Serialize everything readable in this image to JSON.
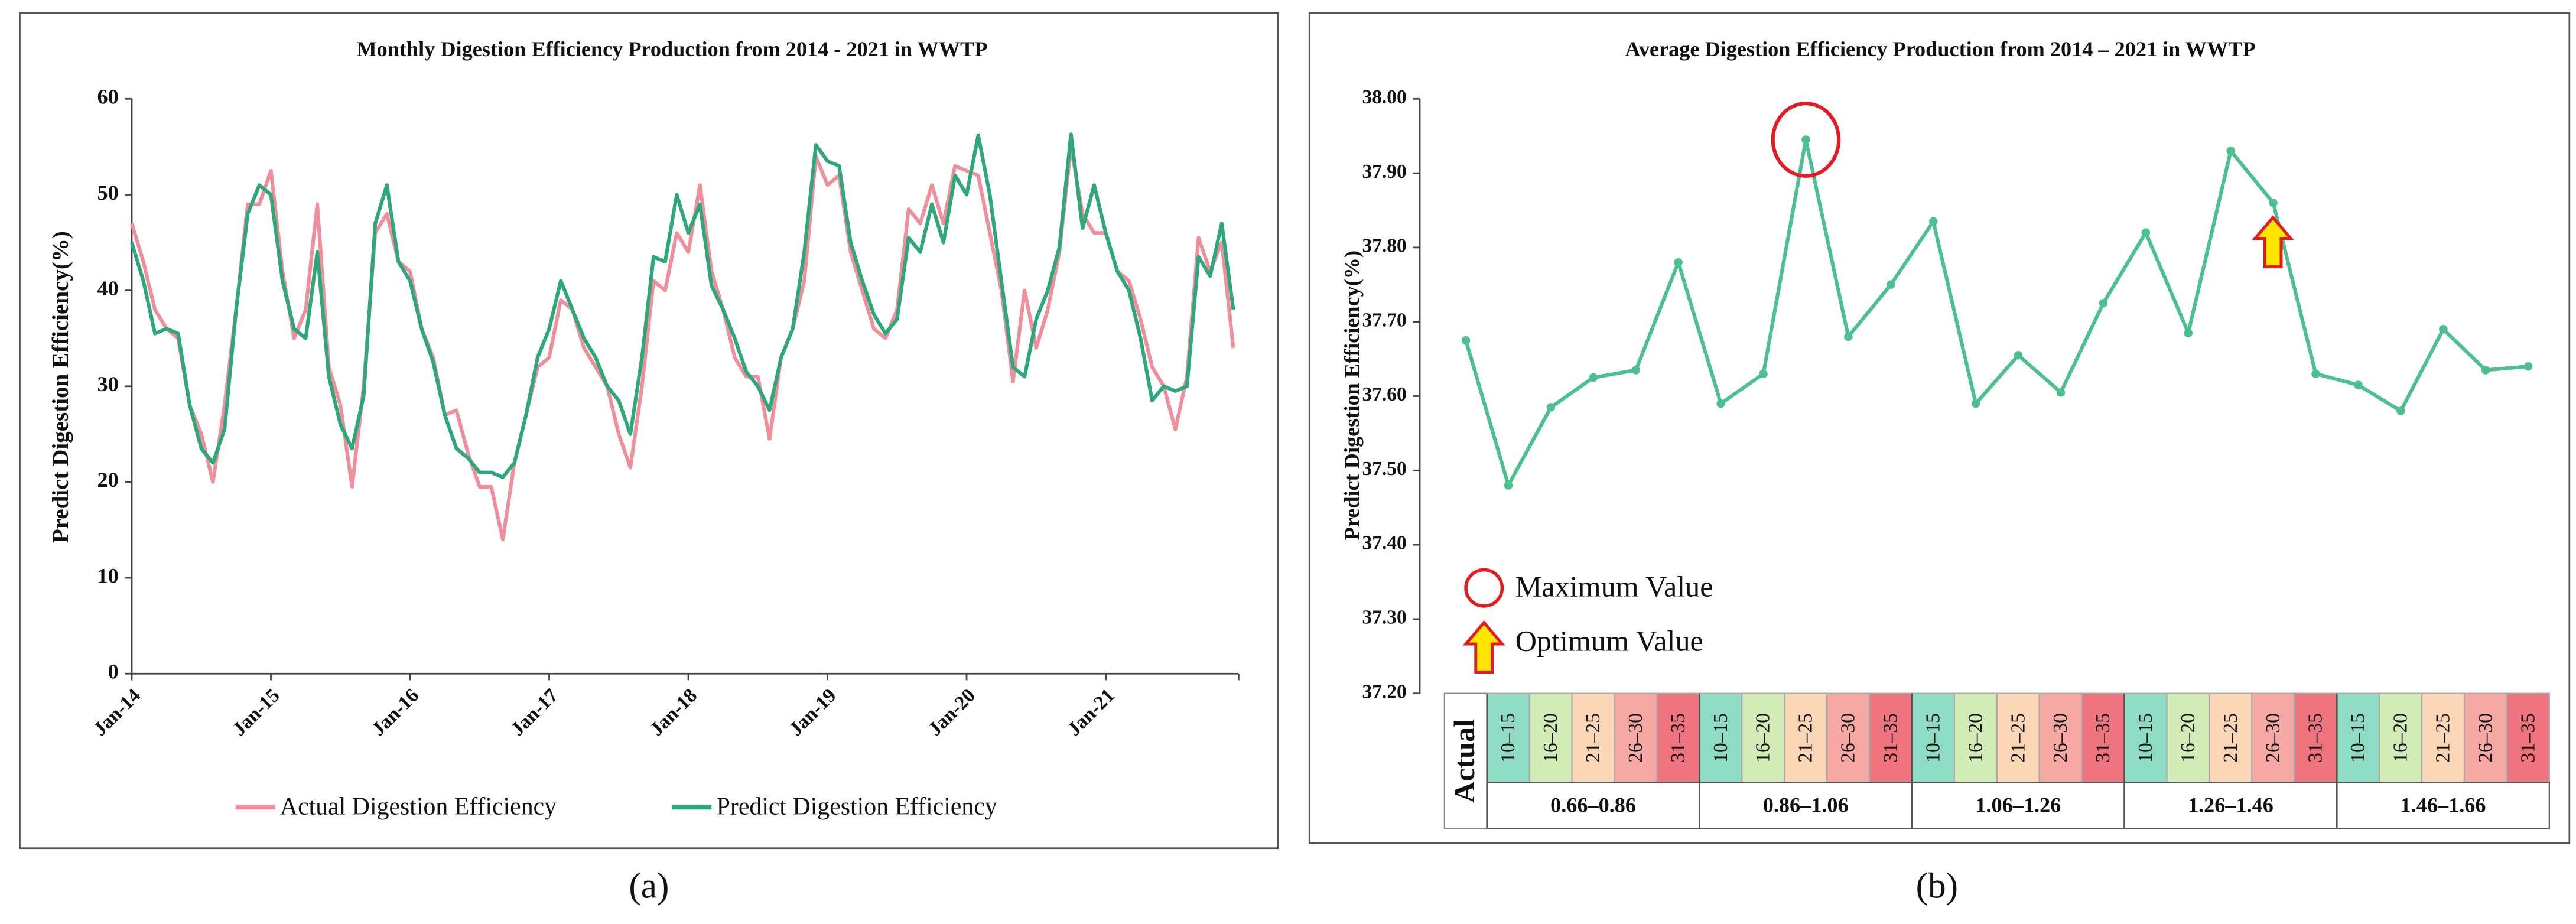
{
  "chart_data": [
    {
      "type": "line",
      "panel_label": "(a)",
      "title": "Monthly Digestion Efficiency Production from 2014 - 2021 in WWTP",
      "y_label": "Predict Digestion  Efficiency(%)",
      "categories": [
        "Jan-14",
        null,
        null,
        null,
        null,
        null,
        null,
        null,
        null,
        null,
        null,
        null,
        "Jan-15",
        null,
        null,
        null,
        null,
        null,
        null,
        null,
        null,
        null,
        null,
        null,
        "Jan-16",
        null,
        null,
        null,
        null,
        null,
        null,
        null,
        null,
        null,
        null,
        null,
        "Jan-17",
        null,
        null,
        null,
        null,
        null,
        null,
        null,
        null,
        null,
        null,
        null,
        "Jan-18",
        null,
        null,
        null,
        null,
        null,
        null,
        null,
        null,
        null,
        null,
        null,
        "Jan-19",
        null,
        null,
        null,
        null,
        null,
        null,
        null,
        null,
        null,
        null,
        null,
        "Jan-20",
        null,
        null,
        null,
        null,
        null,
        null,
        null,
        null,
        null,
        null,
        null,
        "Jan-21",
        null,
        null,
        null,
        null,
        null,
        null,
        null,
        null,
        null,
        null,
        null
      ],
      "ylim": [
        0,
        60
      ],
      "yticks": [
        0,
        10,
        20,
        30,
        40,
        50,
        60
      ],
      "series": [
        {
          "name": "Actual Digestion Efficiency",
          "color": "#f08f9c",
          "values": [
            47,
            43,
            38,
            36,
            35,
            28,
            25,
            20,
            28,
            38,
            49,
            49,
            52.5,
            42,
            35,
            38,
            49,
            32,
            28,
            19.5,
            30,
            46,
            48,
            43,
            42,
            36,
            33,
            27,
            27.5,
            23,
            19.5,
            19.5,
            14,
            22,
            27,
            32,
            33,
            39,
            38,
            34,
            32,
            30,
            25,
            21.5,
            30,
            41,
            40,
            46,
            44,
            51,
            42,
            38,
            33,
            31,
            31,
            24.5,
            33,
            36,
            41,
            54,
            51,
            52,
            44,
            40,
            36,
            35,
            38,
            48.5,
            47,
            51,
            47,
            53,
            52.5,
            52,
            46,
            40,
            30.5,
            40,
            34,
            38,
            44,
            55,
            48,
            46,
            46,
            42,
            41,
            37,
            32,
            30,
            25.5,
            31,
            45.5,
            42,
            45,
            34
          ]
        },
        {
          "name": "Predict Digestion Efficiency",
          "color": "#2ea87a",
          "values": [
            45,
            41,
            35.5,
            36,
            35.5,
            28,
            23.5,
            22,
            25.5,
            38,
            48,
            51,
            50,
            41,
            36,
            35,
            44,
            31,
            26,
            23.5,
            29,
            47,
            51,
            43,
            41,
            36,
            32.5,
            27,
            23.5,
            22.5,
            21,
            21,
            20.5,
            22,
            27,
            33,
            36,
            41,
            38,
            35,
            33,
            30,
            28.5,
            25,
            33,
            43.5,
            43,
            50,
            46,
            49,
            40.5,
            38,
            35,
            31.5,
            30,
            27.5,
            33,
            36,
            44,
            55.2,
            53.5,
            53,
            45,
            41,
            37.5,
            35.5,
            37,
            45.5,
            44,
            49,
            45,
            52,
            50,
            56.2,
            50,
            41,
            32,
            31,
            37,
            40,
            44.5,
            56.3,
            46.5,
            51,
            46,
            42,
            40,
            35,
            28.5,
            30,
            29.5,
            30,
            43.5,
            41.5,
            47,
            38
          ]
        }
      ]
    },
    {
      "type": "line",
      "panel_label": "(b)",
      "title": "Average Digestion  Efficiency Production from 2014 – 2021 in WWTP",
      "y_label": "Predict Digestion  Efficiency(%)",
      "categories": [
        "Actual",
        "10–15",
        "16–20",
        "21–25",
        "26–30",
        "31–35",
        "10–15",
        "16–20",
        "21–25",
        "26–30",
        "31–35",
        "10–15",
        "16–20",
        "21–25",
        "26–30",
        "31–35",
        "10–15",
        "16–20",
        "21–25",
        "26–30",
        "31–35",
        "10–15",
        "16–20",
        "21–25",
        "26–30",
        "31–35"
      ],
      "category_colors": [
        "#ffffff",
        "#8fdcc4",
        "#d3ebb6",
        "#fbd7b8",
        "#f6a9a4",
        "#f07380",
        "#8fdcc4",
        "#d3ebb6",
        "#fbd7b8",
        "#f6a9a4",
        "#f07380",
        "#8fdcc4",
        "#d3ebb6",
        "#fbd7b8",
        "#f6a9a4",
        "#f07380",
        "#8fdcc4",
        "#d3ebb6",
        "#fbd7b8",
        "#f6a9a4",
        "#f07380",
        "#8fdcc4",
        "#d3ebb6",
        "#fbd7b8",
        "#f6a9a4",
        "#f07380"
      ],
      "category_groups": [
        "0.66–0.86",
        "0.86–1.06",
        "1.06–1.26",
        "1.26–1.46",
        "1.46–1.66"
      ],
      "color": "#4cc08e",
      "values": [
        37.675,
        37.48,
        37.585,
        37.625,
        37.635,
        37.78,
        37.59,
        37.63,
        37.945,
        37.68,
        37.75,
        37.835,
        37.59,
        37.655,
        37.605,
        37.725,
        37.82,
        37.685,
        37.93,
        37.86,
        37.63,
        37.615,
        37.58,
        37.69,
        37.635,
        37.64
      ],
      "ylim": [
        37.2,
        38.0
      ],
      "yticks": [
        {
          "value": 37.2,
          "label": "37.20"
        },
        {
          "value": 37.3,
          "label": "37.30"
        },
        {
          "value": 37.4,
          "label": "37.40"
        },
        {
          "value": 37.5,
          "label": "37.50"
        },
        {
          "value": 37.6,
          "label": "37.60"
        },
        {
          "value": 37.7,
          "label": "37.70"
        },
        {
          "value": 37.8,
          "label": "37.80"
        },
        {
          "value": 37.9,
          "label": "37.90"
        },
        {
          "value": 38.0,
          "label": "38.00"
        }
      ],
      "annotations": [
        "Maximum Value",
        "Optimum Value"
      ]
    }
  ]
}
